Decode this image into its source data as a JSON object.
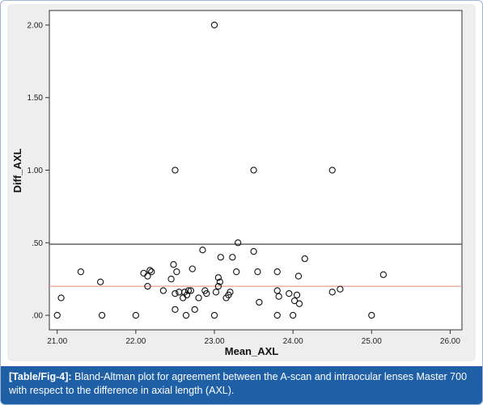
{
  "chart_data": {
    "type": "scatter",
    "title": "",
    "xlabel": "Mean_AXL",
    "ylabel": "Diff_AXL",
    "xlim": [
      20.9,
      26.15
    ],
    "ylim": [
      -0.1,
      2.1
    ],
    "x_ticks": [
      "21.00",
      "22.00",
      "23.00",
      "24.00",
      "25.00",
      "26.00"
    ],
    "y_ticks": [
      ".00",
      ".50",
      "1.00",
      "1.50",
      "2.00"
    ],
    "grid": false,
    "reference_lines": [
      {
        "y": 0.49,
        "color": "#555555"
      },
      {
        "y": 0.2,
        "color": "#e8a090"
      }
    ],
    "series": [
      {
        "points": [
          [
            21.0,
            0.0
          ],
          [
            21.05,
            0.12
          ],
          [
            21.3,
            0.3
          ],
          [
            21.55,
            0.23
          ],
          [
            21.57,
            0.0
          ],
          [
            22.0,
            0.0
          ],
          [
            22.1,
            0.29
          ],
          [
            22.15,
            0.2
          ],
          [
            22.15,
            0.27
          ],
          [
            22.18,
            0.31
          ],
          [
            22.2,
            0.3
          ],
          [
            22.35,
            0.17
          ],
          [
            22.45,
            0.25
          ],
          [
            22.48,
            0.35
          ],
          [
            22.5,
            0.04
          ],
          [
            22.5,
            0.15
          ],
          [
            22.52,
            0.3
          ],
          [
            22.55,
            0.16
          ],
          [
            22.6,
            0.12
          ],
          [
            22.62,
            0.16
          ],
          [
            22.64,
            0.0
          ],
          [
            22.65,
            0.14
          ],
          [
            22.67,
            0.17
          ],
          [
            22.7,
            0.17
          ],
          [
            22.72,
            0.32
          ],
          [
            22.75,
            0.04
          ],
          [
            22.8,
            0.12
          ],
          [
            22.85,
            0.45
          ],
          [
            22.88,
            0.17
          ],
          [
            22.9,
            0.15
          ],
          [
            23.0,
            0.0
          ],
          [
            23.02,
            0.16
          ],
          [
            23.05,
            0.2
          ],
          [
            23.05,
            0.26
          ],
          [
            23.07,
            0.23
          ],
          [
            23.08,
            0.4
          ],
          [
            23.15,
            0.12
          ],
          [
            23.18,
            0.14
          ],
          [
            23.2,
            0.16
          ],
          [
            23.23,
            0.4
          ],
          [
            23.28,
            0.3
          ],
          [
            23.3,
            0.5
          ],
          [
            23.5,
            0.44
          ],
          [
            23.55,
            0.3
          ],
          [
            23.57,
            0.09
          ],
          [
            23.8,
            0.3
          ],
          [
            23.8,
            0.17
          ],
          [
            23.8,
            0.0
          ],
          [
            23.82,
            0.13
          ],
          [
            23.95,
            0.15
          ],
          [
            24.0,
            0.0
          ],
          [
            24.02,
            0.1
          ],
          [
            24.05,
            0.14
          ],
          [
            24.07,
            0.27
          ],
          [
            24.08,
            0.08
          ],
          [
            24.15,
            0.39
          ],
          [
            24.5,
            0.16
          ],
          [
            24.6,
            0.18
          ],
          [
            25.0,
            0.0
          ],
          [
            25.15,
            0.28
          ],
          [
            22.5,
            1.0
          ],
          [
            23.5,
            1.0
          ],
          [
            24.5,
            1.0
          ],
          [
            23.0,
            2.0
          ]
        ]
      }
    ]
  },
  "caption": {
    "label": "[Table/Fig-4]:",
    "text": " Bland-Altman plot for agreement between the A-scan and intraocular lenses  Master 700 with respect to the difference in axial length (AXL)."
  }
}
